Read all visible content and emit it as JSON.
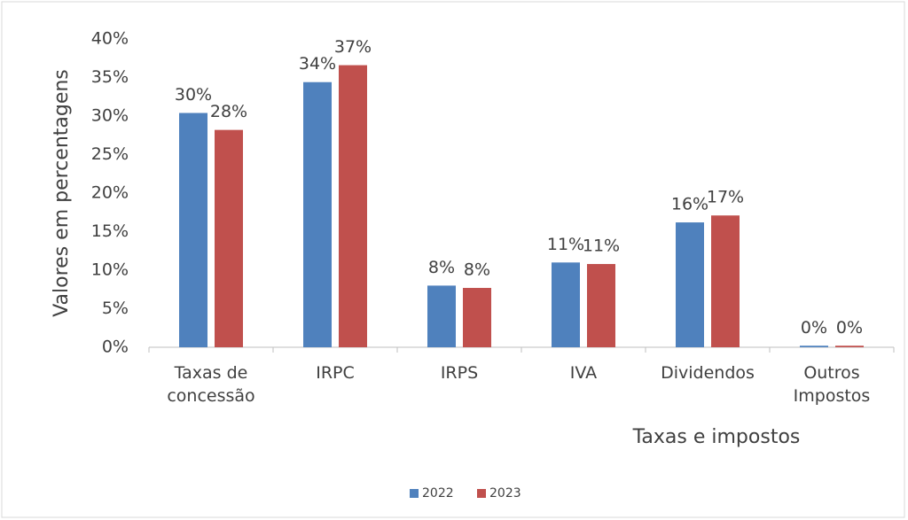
{
  "chart_data": {
    "type": "bar",
    "y_axis_title": "Valores em percentagens",
    "x_axis_title": "Taxas e impostos",
    "categories": [
      "Taxas de concessão",
      "IRPC",
      "IRPS",
      "IVA",
      "Dividendos",
      "Outros Impostos"
    ],
    "series": [
      {
        "name": "2022",
        "color": "#4f81bd",
        "values": [
          30.4,
          34.4,
          8.0,
          11.0,
          16.2,
          0.2
        ],
        "value_labels": [
          "30%",
          "34%",
          "8%",
          "11%",
          "16%",
          "0%"
        ]
      },
      {
        "name": "2023",
        "color": "#c0504d",
        "values": [
          28.2,
          36.6,
          7.7,
          10.8,
          17.1,
          0.2
        ],
        "value_labels": [
          "28%",
          "37%",
          "8%",
          "11%",
          "17%",
          "0%"
        ]
      }
    ],
    "ylim": [
      0,
      40
    ],
    "yticks": [
      {
        "value": 0,
        "label": "0%"
      },
      {
        "value": 5,
        "label": "5%"
      },
      {
        "value": 10,
        "label": "10%"
      },
      {
        "value": 15,
        "label": "15%"
      },
      {
        "value": 20,
        "label": "20%"
      },
      {
        "value": 25,
        "label": "25%"
      },
      {
        "value": 30,
        "label": "30%"
      },
      {
        "value": 35,
        "label": "35%"
      },
      {
        "value": 40,
        "label": "40%"
      }
    ],
    "grid": false,
    "legend": "bottom"
  }
}
